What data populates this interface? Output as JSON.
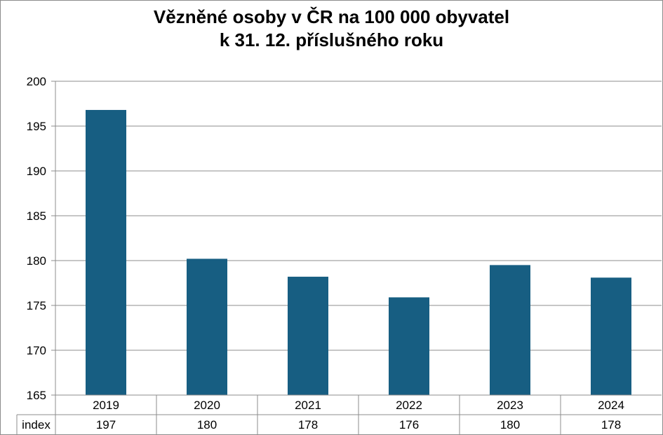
{
  "chart_data": {
    "type": "bar",
    "title_lines": [
      "Vězněné osoby v ČR na 100 000 obyvatel",
      "k 31. 12. příslušného roku"
    ],
    "categories": [
      "2019",
      "2020",
      "2021",
      "2022",
      "2023",
      "2024"
    ],
    "values": [
      196.8,
      180.2,
      178.2,
      175.9,
      179.5,
      178.1
    ],
    "ylim": [
      165,
      200
    ],
    "yticks": [
      "165",
      "170",
      "175",
      "180",
      "185",
      "190",
      "195",
      "200"
    ],
    "grid": true,
    "bar_color": "#175e82",
    "table": {
      "row_label": "index",
      "values": [
        "197",
        "180",
        "178",
        "176",
        "180",
        "178"
      ]
    }
  }
}
